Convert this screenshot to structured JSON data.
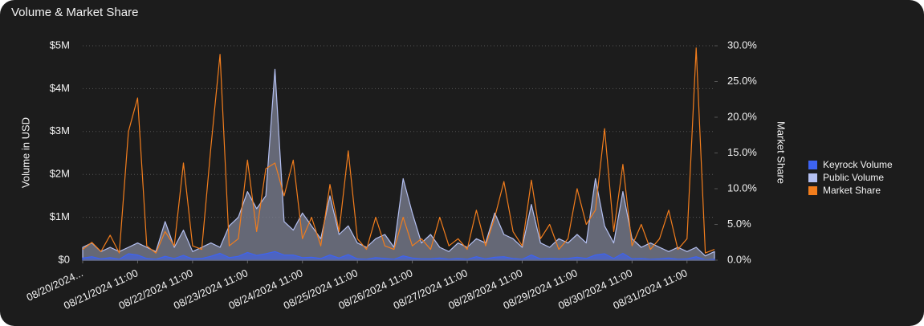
{
  "chart_data": {
    "type": "line",
    "title": "Volume & Market Share",
    "ylabel": "Volume in USD",
    "y2label": "Market Share",
    "categories": [
      "08/20/2024...",
      null,
      null,
      null,
      null,
      null,
      "08/21/2024 11:00",
      null,
      null,
      null,
      null,
      null,
      "08/22/2024 11:00",
      null,
      null,
      null,
      null,
      null,
      "08/23/2024 11:00",
      null,
      null,
      null,
      null,
      null,
      "08/24/2024 11:00",
      null,
      null,
      null,
      null,
      null,
      "08/25/2024 11:00",
      null,
      null,
      null,
      null,
      null,
      "08/26/2024 11:00",
      null,
      null,
      null,
      null,
      null,
      "08/27/2024 11:00",
      null,
      null,
      null,
      null,
      null,
      "08/28/2024 11:00",
      null,
      null,
      null,
      null,
      null,
      "08/29/2024 11:00",
      null,
      null,
      null,
      null,
      null,
      "08/30/2024 11:00",
      null,
      null,
      null,
      null,
      null,
      "08/31/2024 11:00",
      null,
      null,
      null
    ],
    "ylim": [
      0,
      5000000
    ],
    "yticks": [
      {
        "value": 0,
        "label": "$0"
      },
      {
        "value": 1000000,
        "label": "$1M"
      },
      {
        "value": 2000000,
        "label": "$2M"
      },
      {
        "value": 3000000,
        "label": "$3M"
      },
      {
        "value": 4000000,
        "label": "$4M"
      },
      {
        "value": 5000000,
        "label": "$5M"
      }
    ],
    "y2lim": [
      0,
      30
    ],
    "y2ticks": [
      {
        "value": 0,
        "label": "0.0%"
      },
      {
        "value": 5,
        "label": "5.0%"
      },
      {
        "value": 10,
        "label": "10.0%"
      },
      {
        "value": 15,
        "label": "15.0%"
      },
      {
        "value": 20,
        "label": "20.0%"
      },
      {
        "value": 25,
        "label": "25.0%"
      },
      {
        "value": 30,
        "label": "30.0%"
      }
    ],
    "grid": true,
    "legend": "right",
    "series": [
      {
        "name": "Keyrock Volume",
        "color": "#3d63f2",
        "values": [
          50000,
          80000,
          30000,
          60000,
          20000,
          150000,
          120000,
          40000,
          20000,
          90000,
          40000,
          110000,
          30000,
          40000,
          90000,
          160000,
          60000,
          90000,
          180000,
          110000,
          150000,
          200000,
          120000,
          120000,
          60000,
          70000,
          40000,
          120000,
          50000,
          130000,
          30000,
          20000,
          60000,
          40000,
          20000,
          100000,
          50000,
          30000,
          30000,
          50000,
          20000,
          40000,
          20000,
          80000,
          30000,
          70000,
          80000,
          40000,
          20000,
          120000,
          30000,
          40000,
          30000,
          40000,
          70000,
          40000,
          120000,
          150000,
          40000,
          160000,
          30000,
          40000,
          20000,
          30000,
          50000,
          20000,
          30000,
          80000,
          10000,
          20000
        ]
      },
      {
        "name": "Public Volume",
        "color": "#b4c0f2",
        "values": [
          300000,
          400000,
          200000,
          300000,
          200000,
          300000,
          400000,
          300000,
          200000,
          900000,
          300000,
          700000,
          200000,
          300000,
          400000,
          300000,
          800000,
          1000000,
          1600000,
          1200000,
          1500000,
          4450000,
          900000,
          700000,
          1100000,
          800000,
          500000,
          1500000,
          600000,
          800000,
          400000,
          300000,
          500000,
          600000,
          300000,
          1900000,
          1100000,
          400000,
          600000,
          300000,
          200000,
          400000,
          300000,
          500000,
          400000,
          1100000,
          600000,
          500000,
          300000,
          1300000,
          400000,
          300000,
          500000,
          400000,
          600000,
          400000,
          1900000,
          800000,
          400000,
          1600000,
          500000,
          300000,
          400000,
          300000,
          200000,
          300000,
          200000,
          300000,
          100000,
          200000
        ]
      },
      {
        "name": "Market Share",
        "color": "#f27d1c",
        "axis": "y2",
        "values": [
          1.5,
          2.5,
          1.2,
          3.5,
          1,
          18,
          22.7,
          2,
          1,
          4,
          2,
          13.6,
          2,
          1.5,
          15.8,
          28.8,
          2,
          3,
          14,
          4,
          12.8,
          13.6,
          9,
          14,
          3,
          6,
          2,
          10.6,
          4,
          15.3,
          3,
          1.5,
          6,
          2,
          1.5,
          6,
          2,
          3,
          1.5,
          6,
          2,
          3,
          1.5,
          7,
          2,
          6,
          11,
          4,
          2,
          11.2,
          3,
          5,
          1.5,
          3,
          10,
          5,
          7,
          18.4,
          4,
          13.4,
          2,
          5,
          1.5,
          3,
          7,
          1.5,
          3,
          29.7,
          1,
          1.5
        ]
      }
    ]
  }
}
